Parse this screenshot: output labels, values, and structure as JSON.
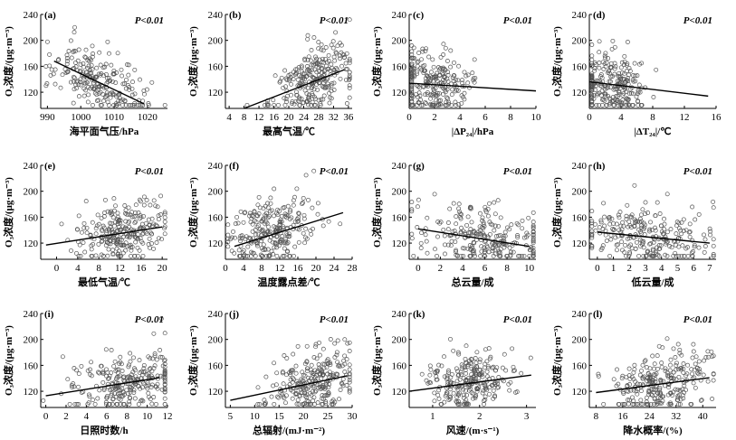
{
  "chart_data": [
    {
      "panel": "(a)",
      "type": "scatter",
      "xlabel": "海平面气压/hPa",
      "ylabel": "O₃浓度/(μg·m⁻³)",
      "annotation": "P<0.01",
      "xlim": [
        988,
        1026
      ],
      "ylim": [
        95,
        240
      ],
      "xticks": [
        990,
        1000,
        1010,
        1020
      ],
      "yticks": [
        120,
        160,
        200,
        240
      ],
      "trend": [
        [
          992,
          168
        ],
        [
          1019,
          102
        ]
      ],
      "cx": 1005,
      "sx": 7,
      "n": 230,
      "slope": -2.4,
      "resid": 22,
      "seed": 11
    },
    {
      "panel": "(b)",
      "type": "scatter",
      "xlabel": "最高气温/℃",
      "ylabel": "O₃浓度/(μg·m⁻³)",
      "annotation": "P<0.01",
      "xlim": [
        3,
        37
      ],
      "ylim": [
        95,
        240
      ],
      "xticks": [
        4,
        8,
        12,
        16,
        20,
        24,
        28,
        32,
        36
      ],
      "yticks": [
        120,
        160,
        200,
        240
      ],
      "trend": [
        [
          8,
          95
        ],
        [
          35,
          155
        ]
      ],
      "cx": 27,
      "sx": 5,
      "n": 260,
      "slope": 2.2,
      "resid": 22,
      "seed": 23
    },
    {
      "panel": "(c)",
      "type": "scatter",
      "xlabel": "|ΔP₂₄|/hPa",
      "ylabel": "O₃浓度/(μg·m⁻³)",
      "annotation": "P<0.01",
      "xlim": [
        0,
        10
      ],
      "ylim": [
        95,
        240
      ],
      "xticks": [
        0,
        2,
        4,
        6,
        8,
        10
      ],
      "yticks": [
        120,
        160,
        200,
        240
      ],
      "trend": [
        [
          0,
          134
        ],
        [
          10,
          122
        ]
      ],
      "cx": 1.8,
      "sx": 1.6,
      "n": 250,
      "slope": -1.2,
      "resid": 24,
      "seed": 37
    },
    {
      "panel": "(d)",
      "type": "scatter",
      "xlabel": "|ΔT₂₄|/℃",
      "ylabel": "O₃浓度/(μg·m⁻³)",
      "annotation": "P<0.01",
      "xlim": [
        0,
        16
      ],
      "ylim": [
        95,
        240
      ],
      "xticks": [
        0,
        4,
        8,
        12,
        16
      ],
      "yticks": [
        120,
        160,
        200,
        240
      ],
      "trend": [
        [
          0,
          136
        ],
        [
          15,
          114
        ]
      ],
      "cx": 2.5,
      "sx": 2.3,
      "n": 250,
      "slope": -1.5,
      "resid": 24,
      "seed": 41
    },
    {
      "panel": "(e)",
      "type": "scatter",
      "xlabel": "最低气温/℃",
      "ylabel": "O₃浓度/(μg·m⁻³)",
      "annotation": "P<0.01",
      "xlim": [
        -3,
        21
      ],
      "ylim": [
        95,
        240
      ],
      "xticks": [
        0,
        4,
        8,
        12,
        16,
        20
      ],
      "yticks": [
        120,
        160,
        200,
        240
      ],
      "trend": [
        [
          -2,
          117
        ],
        [
          20,
          145
        ]
      ],
      "cx": 12,
      "sx": 4.5,
      "n": 260,
      "slope": 1.3,
      "resid": 22,
      "seed": 53
    },
    {
      "panel": "(f)",
      "type": "scatter",
      "xlabel": "温度露点差/℃",
      "ylabel": "O₃浓度/(μg·m⁻³)",
      "annotation": "P<0.01",
      "xlim": [
        0,
        28
      ],
      "ylim": [
        95,
        240
      ],
      "xticks": [
        0,
        4,
        8,
        12,
        16,
        20,
        24,
        28
      ],
      "yticks": [
        120,
        160,
        200,
        240
      ],
      "trend": [
        [
          2,
          115
        ],
        [
          26,
          167
        ]
      ],
      "cx": 10,
      "sx": 4.5,
      "n": 260,
      "slope": 2.2,
      "resid": 22,
      "seed": 67
    },
    {
      "panel": "(g)",
      "type": "scatter",
      "xlabel": "总云量/成",
      "ylabel": "O₃浓度/(μg·m⁻³)",
      "annotation": "P<0.01",
      "xlim": [
        -0.8,
        10.6
      ],
      "ylim": [
        95,
        240
      ],
      "xticks": [
        0,
        2,
        4,
        6,
        8,
        10
      ],
      "yticks": [
        120,
        160,
        200,
        240
      ],
      "trend": [
        [
          0,
          142
        ],
        [
          10,
          115
        ]
      ],
      "cx": 6,
      "sx": 3,
      "n": 260,
      "slope": -2.7,
      "resid": 22,
      "seed": 71
    },
    {
      "panel": "(h)",
      "type": "scatter",
      "xlabel": "低云量/成",
      "ylabel": "O₃浓度/(μg·m⁻³)",
      "annotation": "P<0.01",
      "xlim": [
        -0.5,
        7.4
      ],
      "ylim": [
        95,
        240
      ],
      "xticks": [
        0,
        1,
        2,
        3,
        4,
        5,
        6,
        7
      ],
      "yticks": [
        120,
        160,
        200,
        240
      ],
      "trend": [
        [
          0,
          137
        ],
        [
          7,
          120
        ]
      ],
      "cx": 3,
      "sx": 2,
      "n": 250,
      "slope": -2.4,
      "resid": 22,
      "seed": 83
    },
    {
      "panel": "(i)",
      "type": "scatter",
      "xlabel": "日照时数/h",
      "ylabel": "O₃浓度/(μg·m⁻³)",
      "annotation": "P<0.01",
      "xlim": [
        -0.5,
        12
      ],
      "ylim": [
        95,
        240
      ],
      "xticks": [
        0,
        2,
        4,
        6,
        8,
        10,
        12
      ],
      "yticks": [
        120,
        160,
        200,
        240
      ],
      "trend": [
        [
          0,
          113
        ],
        [
          11.2,
          141
        ]
      ],
      "cx": 8,
      "sx": 2.8,
      "n": 260,
      "slope": 2.5,
      "resid": 22,
      "seed": 97
    },
    {
      "panel": "(j)",
      "type": "scatter",
      "xlabel": "总辐射/(mJ·m⁻²)",
      "ylabel": "O₃浓度/(μg·m⁻³)",
      "annotation": "P<0.01",
      "xlim": [
        4,
        30
      ],
      "ylim": [
        95,
        240
      ],
      "xticks": [
        5,
        10,
        15,
        20,
        25,
        30
      ],
      "yticks": [
        120,
        160,
        200,
        240
      ],
      "trend": [
        [
          5,
          106
        ],
        [
          29,
          144
        ]
      ],
      "cx": 22,
      "sx": 4.5,
      "n": 260,
      "slope": 1.6,
      "resid": 22,
      "seed": 101
    },
    {
      "panel": "(k)",
      "type": "scatter",
      "xlabel": "风速/(m·s⁻¹)",
      "ylabel": "O₃浓度/(μg·m⁻³)",
      "annotation": "P<0.01",
      "xlim": [
        0.5,
        3.2
      ],
      "ylim": [
        95,
        240
      ],
      "xticks": [
        1,
        2,
        3
      ],
      "yticks": [
        120,
        160,
        200,
        240
      ],
      "trend": [
        [
          0.5,
          120
        ],
        [
          3.1,
          145
        ]
      ],
      "cx": 1.8,
      "sx": 0.45,
      "n": 250,
      "slope": 9.5,
      "resid": 22,
      "seed": 113
    },
    {
      "panel": "(l)",
      "type": "scatter",
      "xlabel": "降水概率/(%)",
      "ylabel": "O₃浓度/(μg·m⁻³)",
      "annotation": "P<0.01",
      "xlim": [
        6,
        44
      ],
      "ylim": [
        95,
        240
      ],
      "xticks": [
        8,
        16,
        24,
        32,
        40
      ],
      "yticks": [
        120,
        160,
        200,
        240
      ],
      "trend": [
        [
          8,
          118
        ],
        [
          42,
          141
        ]
      ],
      "cx": 28,
      "sx": 7,
      "n": 260,
      "slope": 0.7,
      "resid": 22,
      "seed": 127
    }
  ]
}
